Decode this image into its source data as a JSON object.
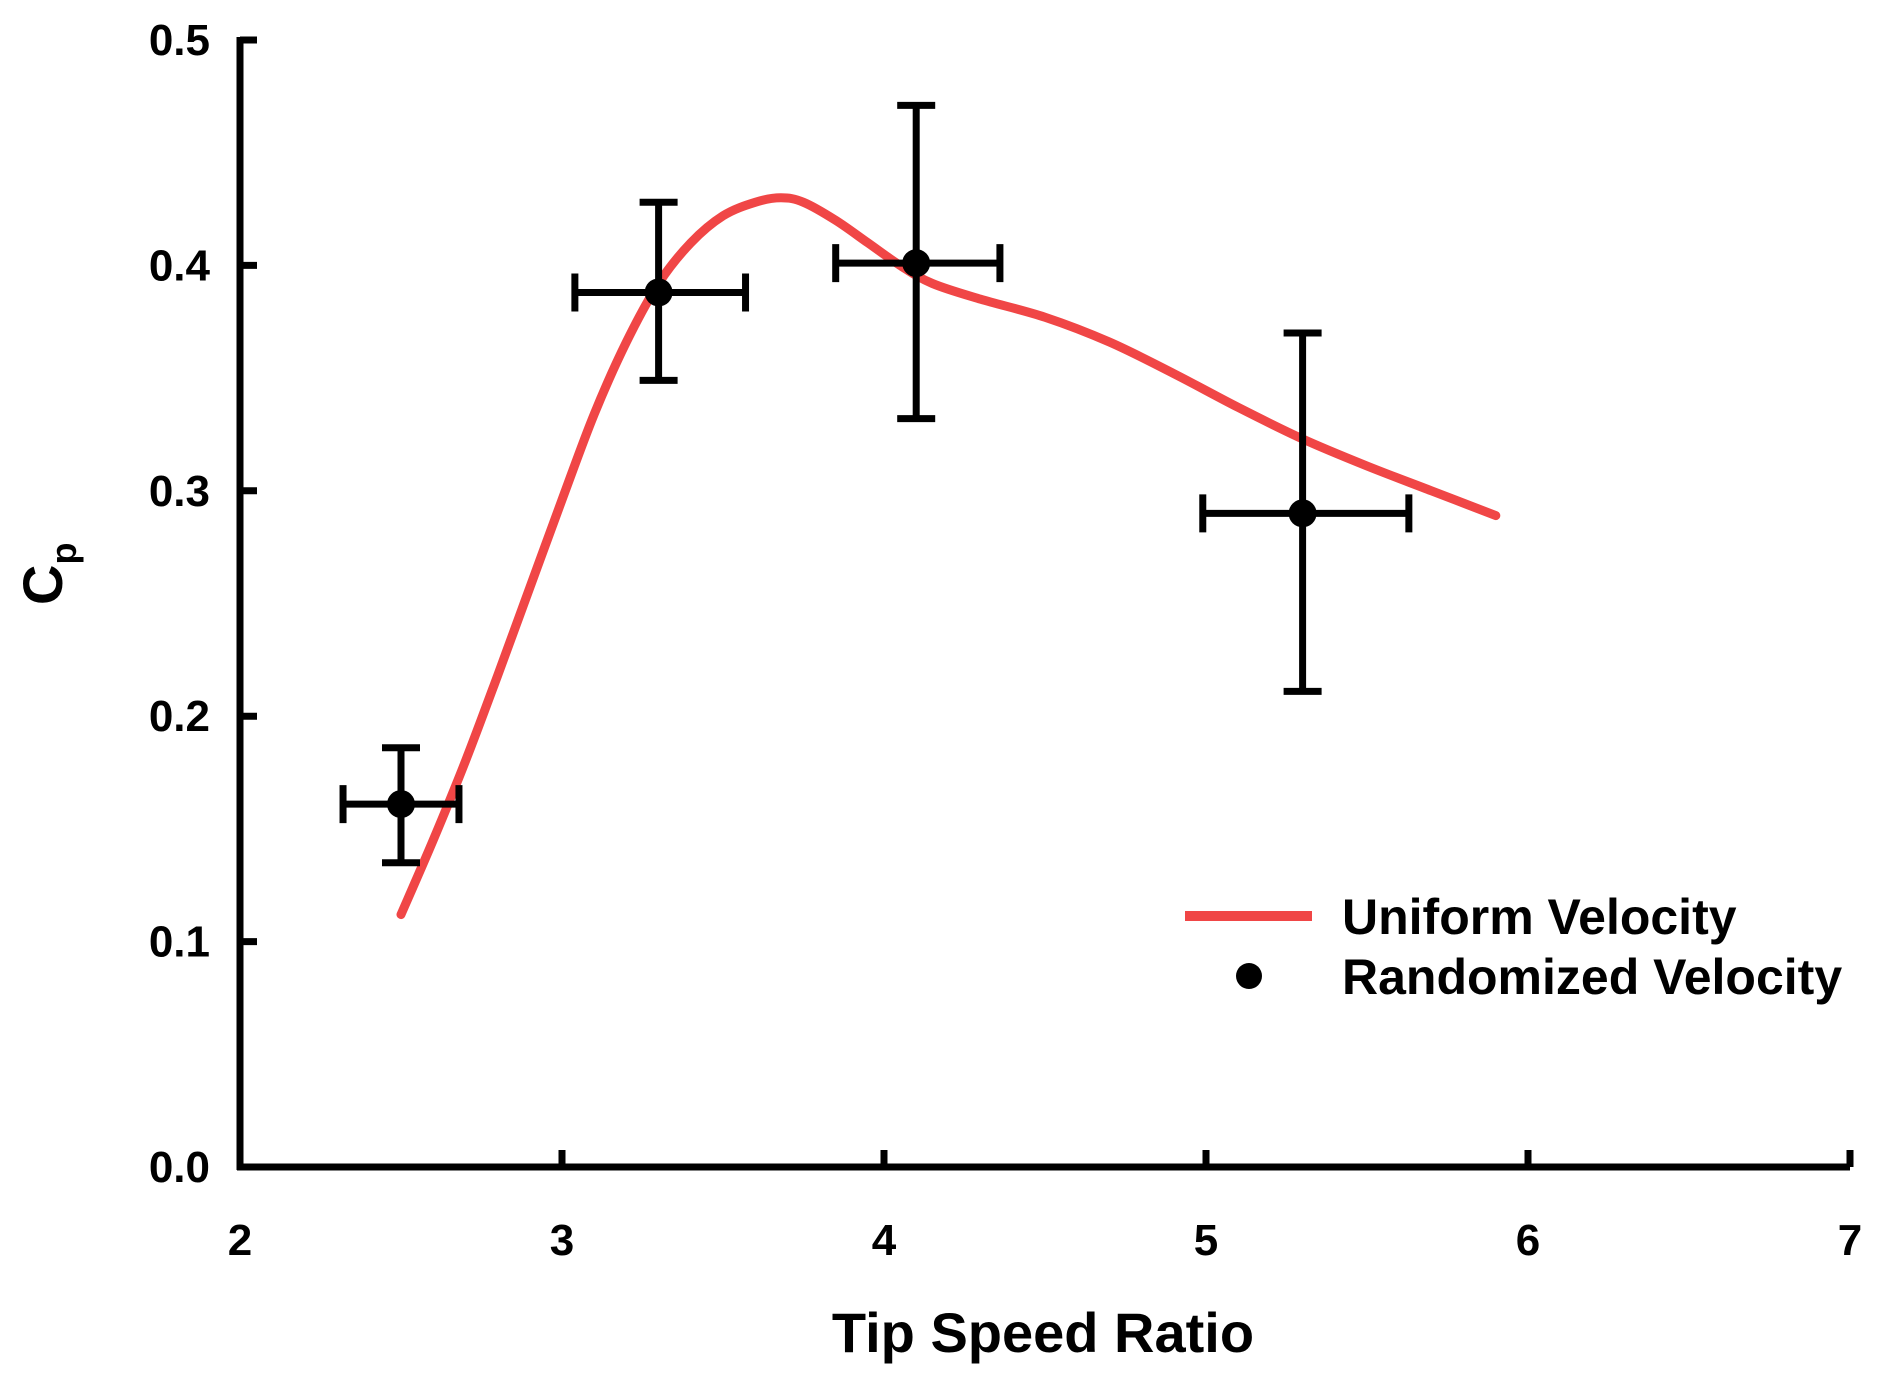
{
  "chart_data": {
    "type": "scatter",
    "title": "",
    "xlabel": "Tip Speed Ratio",
    "ylabel_main": "C",
    "ylabel_sub": "p",
    "xlim": [
      2,
      7
    ],
    "ylim": [
      0,
      0.5
    ],
    "xticks": [
      2,
      3,
      4,
      5,
      6,
      7
    ],
    "xtick_labels": [
      "2",
      "3",
      "4",
      "5",
      "6",
      "7"
    ],
    "yticks": [
      0,
      0.1,
      0.2,
      0.3,
      0.4,
      0.5
    ],
    "ytick_labels": [
      "0.0",
      "0.1",
      "0.2",
      "0.3",
      "0.4",
      "0.5"
    ],
    "grid": false,
    "legend_position": "bottom-right",
    "series": [
      {
        "name": "Uniform Velocity",
        "kind": "line",
        "color": "#f04646",
        "x": [
          2.5,
          2.6,
          2.7,
          2.8,
          2.9,
          3.0,
          3.1,
          3.2,
          3.3,
          3.4,
          3.5,
          3.6,
          3.68,
          3.75,
          3.85,
          3.95,
          4.05,
          4.15,
          4.3,
          4.5,
          4.7,
          4.9,
          5.1,
          5.3,
          5.5,
          5.7,
          5.9
        ],
        "y": [
          0.112,
          0.145,
          0.18,
          0.218,
          0.257,
          0.296,
          0.334,
          0.366,
          0.392,
          0.41,
          0.422,
          0.428,
          0.43,
          0.428,
          0.42,
          0.41,
          0.4,
          0.392,
          0.385,
          0.377,
          0.366,
          0.352,
          0.337,
          0.323,
          0.311,
          0.3,
          0.289
        ]
      },
      {
        "name": "Randomized Velocity",
        "kind": "scatter",
        "color": "#000000",
        "points": [
          {
            "x": 2.5,
            "y": 0.161,
            "xerr_low": 2.32,
            "xerr_high": 2.68,
            "yerr_low": 0.135,
            "yerr_high": 0.186
          },
          {
            "x": 3.3,
            "y": 0.388,
            "xerr_low": 3.04,
            "xerr_high": 3.57,
            "yerr_low": 0.349,
            "yerr_high": 0.428
          },
          {
            "x": 4.1,
            "y": 0.401,
            "xerr_low": 3.85,
            "xerr_high": 4.36,
            "yerr_low": 0.332,
            "yerr_high": 0.471
          },
          {
            "x": 5.3,
            "y": 0.29,
            "xerr_low": 4.99,
            "xerr_high": 5.63,
            "yerr_low": 0.211,
            "yerr_high": 0.37
          }
        ]
      }
    ]
  }
}
